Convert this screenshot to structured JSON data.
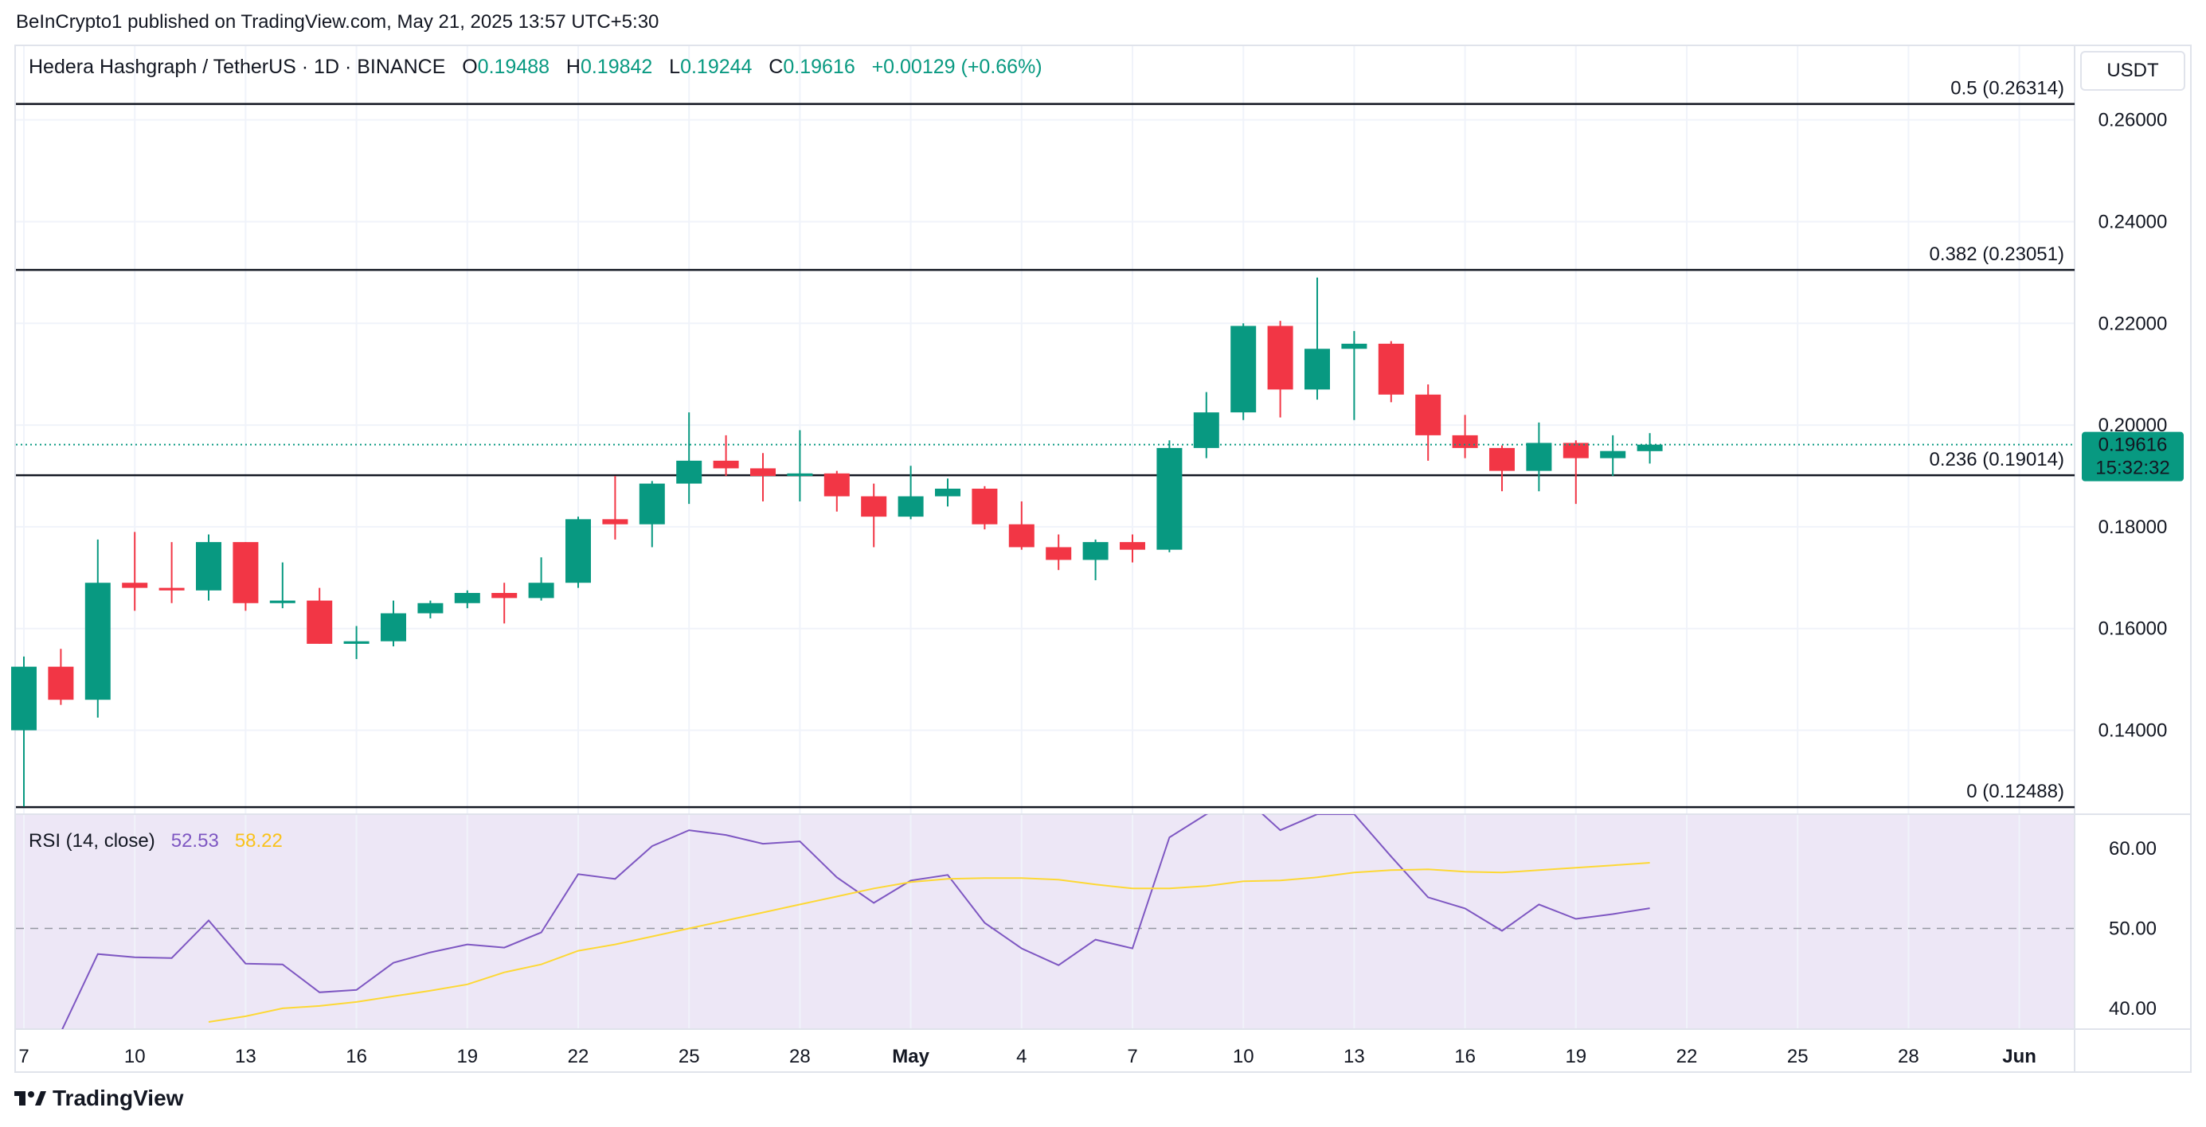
{
  "publisher": "BeInCrypto1 published on TradingView.com, May 21, 2025 13:57 UTC+5:30",
  "brand": "TradingView",
  "legend": {
    "symbol": "Hedera Hashgraph / TetherUS · 1D · BINANCE",
    "o_label": "O",
    "o": "0.19488",
    "h_label": "H",
    "h": "0.19842",
    "l_label": "L",
    "l": "0.19244",
    "c_label": "C",
    "c": "0.19616",
    "change": "+0.00129 (+0.66%)"
  },
  "currency": "USDT",
  "price_badge": {
    "price": "0.19616",
    "countdown": "15:32:32",
    "color": "#089981"
  },
  "rsi_legend": {
    "label": "RSI (14, close)",
    "rsi": "52.53",
    "ma": "58.22"
  },
  "colors": {
    "up": "#089981",
    "down": "#f23645",
    "rsi": "#7e57c2",
    "rsi_ma": "#fdd835",
    "rsi_band": "#ede7f6"
  },
  "chart_data": [
    {
      "type": "candlestick",
      "title": "Hedera Hashgraph / TetherUS · 1D · BINANCE",
      "ylim": [
        0.1235,
        0.2745
      ],
      "y_ticks": [
        "0.26000",
        "0.24000",
        "0.22000",
        "0.20000",
        "0.18000",
        "0.16000",
        "0.14000"
      ],
      "x_tick_labels": [
        "7",
        "10",
        "13",
        "16",
        "19",
        "22",
        "25",
        "28",
        "May",
        "4",
        "7",
        "10",
        "13",
        "16",
        "19",
        "22",
        "25",
        "28",
        "Jun"
      ],
      "fib_levels": [
        {
          "label": "0.5 (0.26314)",
          "value": 0.26314
        },
        {
          "label": "0.382 (0.23051)",
          "value": 0.23051
        },
        {
          "label": "0.236 (0.19014)",
          "value": 0.19014
        },
        {
          "label": "0 (0.12488)",
          "value": 0.12488
        }
      ],
      "last_price": 0.19616,
      "candles": [
        {
          "date": "2025-04-07",
          "o": 0.14,
          "h": 0.1545,
          "l": 0.125,
          "c": 0.1525
        },
        {
          "date": "2025-04-08",
          "o": 0.1525,
          "h": 0.156,
          "l": 0.145,
          "c": 0.146
        },
        {
          "date": "2025-04-09",
          "o": 0.146,
          "h": 0.1775,
          "l": 0.1425,
          "c": 0.169
        },
        {
          "date": "2025-04-10",
          "o": 0.169,
          "h": 0.179,
          "l": 0.1635,
          "c": 0.168
        },
        {
          "date": "2025-04-11",
          "o": 0.168,
          "h": 0.177,
          "l": 0.165,
          "c": 0.1675
        },
        {
          "date": "2025-04-12",
          "o": 0.1675,
          "h": 0.1785,
          "l": 0.1655,
          "c": 0.177
        },
        {
          "date": "2025-04-13",
          "o": 0.177,
          "h": 0.177,
          "l": 0.1635,
          "c": 0.165
        },
        {
          "date": "2025-04-14",
          "o": 0.165,
          "h": 0.173,
          "l": 0.164,
          "c": 0.1655
        },
        {
          "date": "2025-04-15",
          "o": 0.1655,
          "h": 0.168,
          "l": 0.157,
          "c": 0.157
        },
        {
          "date": "2025-04-16",
          "o": 0.157,
          "h": 0.1605,
          "l": 0.154,
          "c": 0.1575
        },
        {
          "date": "2025-04-17",
          "o": 0.1575,
          "h": 0.1655,
          "l": 0.1565,
          "c": 0.163
        },
        {
          "date": "2025-04-18",
          "o": 0.163,
          "h": 0.1655,
          "l": 0.162,
          "c": 0.165
        },
        {
          "date": "2025-04-19",
          "o": 0.165,
          "h": 0.1675,
          "l": 0.164,
          "c": 0.167
        },
        {
          "date": "2025-04-20",
          "o": 0.167,
          "h": 0.169,
          "l": 0.161,
          "c": 0.166
        },
        {
          "date": "2025-04-21",
          "o": 0.166,
          "h": 0.174,
          "l": 0.1655,
          "c": 0.169
        },
        {
          "date": "2025-04-22",
          "o": 0.169,
          "h": 0.182,
          "l": 0.168,
          "c": 0.1815
        },
        {
          "date": "2025-04-23",
          "o": 0.1815,
          "h": 0.19,
          "l": 0.1775,
          "c": 0.1805
        },
        {
          "date": "2025-04-24",
          "o": 0.1805,
          "h": 0.189,
          "l": 0.176,
          "c": 0.1885
        },
        {
          "date": "2025-04-25",
          "o": 0.1885,
          "h": 0.2025,
          "l": 0.1845,
          "c": 0.193
        },
        {
          "date": "2025-04-26",
          "o": 0.193,
          "h": 0.198,
          "l": 0.19,
          "c": 0.1915
        },
        {
          "date": "2025-04-27",
          "o": 0.1915,
          "h": 0.1945,
          "l": 0.185,
          "c": 0.19
        },
        {
          "date": "2025-04-28",
          "o": 0.19,
          "h": 0.199,
          "l": 0.185,
          "c": 0.1905
        },
        {
          "date": "2025-04-29",
          "o": 0.1905,
          "h": 0.191,
          "l": 0.183,
          "c": 0.186
        },
        {
          "date": "2025-04-30",
          "o": 0.186,
          "h": 0.1885,
          "l": 0.176,
          "c": 0.182
        },
        {
          "date": "2025-05-01",
          "o": 0.182,
          "h": 0.192,
          "l": 0.1815,
          "c": 0.186
        },
        {
          "date": "2025-05-02",
          "o": 0.186,
          "h": 0.1895,
          "l": 0.184,
          "c": 0.1875
        },
        {
          "date": "2025-05-03",
          "o": 0.1875,
          "h": 0.188,
          "l": 0.1795,
          "c": 0.1805
        },
        {
          "date": "2025-05-04",
          "o": 0.1805,
          "h": 0.185,
          "l": 0.1755,
          "c": 0.176
        },
        {
          "date": "2025-05-05",
          "o": 0.176,
          "h": 0.1785,
          "l": 0.1715,
          "c": 0.1735
        },
        {
          "date": "2025-05-06",
          "o": 0.1735,
          "h": 0.1775,
          "l": 0.1695,
          "c": 0.177
        },
        {
          "date": "2025-05-07",
          "o": 0.177,
          "h": 0.1785,
          "l": 0.173,
          "c": 0.1755
        },
        {
          "date": "2025-05-08",
          "o": 0.1755,
          "h": 0.197,
          "l": 0.175,
          "c": 0.1955
        },
        {
          "date": "2025-05-09",
          "o": 0.1955,
          "h": 0.2065,
          "l": 0.1935,
          "c": 0.2025
        },
        {
          "date": "2025-05-10",
          "o": 0.2025,
          "h": 0.22,
          "l": 0.201,
          "c": 0.2195
        },
        {
          "date": "2025-05-11",
          "o": 0.2195,
          "h": 0.2205,
          "l": 0.2015,
          "c": 0.207
        },
        {
          "date": "2025-05-12",
          "o": 0.207,
          "h": 0.229,
          "l": 0.205,
          "c": 0.215
        },
        {
          "date": "2025-05-13",
          "o": 0.215,
          "h": 0.2185,
          "l": 0.201,
          "c": 0.216
        },
        {
          "date": "2025-05-14",
          "o": 0.216,
          "h": 0.2165,
          "l": 0.2045,
          "c": 0.206
        },
        {
          "date": "2025-05-15",
          "o": 0.206,
          "h": 0.208,
          "l": 0.193,
          "c": 0.198
        },
        {
          "date": "2025-05-16",
          "o": 0.198,
          "h": 0.202,
          "l": 0.1935,
          "c": 0.1955
        },
        {
          "date": "2025-05-17",
          "o": 0.1955,
          "h": 0.196,
          "l": 0.187,
          "c": 0.191
        },
        {
          "date": "2025-05-18",
          "o": 0.191,
          "h": 0.2005,
          "l": 0.187,
          "c": 0.1965
        },
        {
          "date": "2025-05-19",
          "o": 0.1965,
          "h": 0.197,
          "l": 0.1845,
          "c": 0.1935
        },
        {
          "date": "2025-05-20",
          "o": 0.1935,
          "h": 0.198,
          "l": 0.19,
          "c": 0.1949
        },
        {
          "date": "2025-05-21",
          "o": 0.19488,
          "h": 0.19842,
          "l": 0.19244,
          "c": 0.19616
        }
      ]
    },
    {
      "type": "line",
      "title": "RSI (14, close)",
      "ylim": [
        37.4,
        64.3
      ],
      "y_ticks": [
        "60.00",
        "50.00",
        "40.00"
      ],
      "midline": 50,
      "series": [
        {
          "name": "RSI",
          "points": [
            [
              "2025-04-08",
              37.0
            ],
            [
              "2025-04-09",
              46.8
            ],
            [
              "2025-04-10",
              46.4
            ],
            [
              "2025-04-11",
              46.3
            ],
            [
              "2025-04-12",
              51.0
            ],
            [
              "2025-04-13",
              45.6
            ],
            [
              "2025-04-14",
              45.5
            ],
            [
              "2025-04-15",
              42.0
            ],
            [
              "2025-04-16",
              42.3
            ],
            [
              "2025-04-17",
              45.7
            ],
            [
              "2025-04-18",
              47.0
            ],
            [
              "2025-04-19",
              48.0
            ],
            [
              "2025-04-20",
              47.6
            ],
            [
              "2025-04-21",
              49.5
            ],
            [
              "2025-04-22",
              56.8
            ],
            [
              "2025-04-23",
              56.2
            ],
            [
              "2025-04-24",
              60.3
            ],
            [
              "2025-04-25",
              62.3
            ],
            [
              "2025-04-26",
              61.7
            ],
            [
              "2025-04-27",
              60.6
            ],
            [
              "2025-04-28",
              60.9
            ],
            [
              "2025-04-29",
              56.4
            ],
            [
              "2025-04-30",
              53.2
            ],
            [
              "2025-05-01",
              56.0
            ],
            [
              "2025-05-02",
              56.7
            ],
            [
              "2025-05-03",
              50.7
            ],
            [
              "2025-05-04",
              47.5
            ],
            [
              "2025-05-05",
              45.4
            ],
            [
              "2025-05-06",
              48.6
            ],
            [
              "2025-05-07",
              47.5
            ],
            [
              "2025-05-08",
              61.4
            ],
            [
              "2025-05-09",
              64.3
            ],
            [
              "2025-05-10",
              66.5
            ],
            [
              "2025-05-11",
              62.3
            ],
            [
              "2025-05-12",
              64.3
            ],
            [
              "2025-05-13",
              64.3
            ],
            [
              "2025-05-14",
              59.0
            ],
            [
              "2025-05-15",
              53.9
            ],
            [
              "2025-05-16",
              52.5
            ],
            [
              "2025-05-17",
              49.7
            ],
            [
              "2025-05-18",
              53.0
            ],
            [
              "2025-05-19",
              51.2
            ],
            [
              "2025-05-20",
              51.8
            ],
            [
              "2025-05-21",
              52.53
            ]
          ]
        },
        {
          "name": "RSI-based MA",
          "points": [
            [
              "2025-04-12",
              38.3
            ],
            [
              "2025-04-13",
              39.0
            ],
            [
              "2025-04-14",
              40.0
            ],
            [
              "2025-04-15",
              40.3
            ],
            [
              "2025-04-16",
              40.8
            ],
            [
              "2025-04-17",
              41.5
            ],
            [
              "2025-04-18",
              42.2
            ],
            [
              "2025-04-19",
              43.0
            ],
            [
              "2025-04-20",
              44.5
            ],
            [
              "2025-04-21",
              45.5
            ],
            [
              "2025-04-22",
              47.2
            ],
            [
              "2025-04-23",
              48.0
            ],
            [
              "2025-04-24",
              49.0
            ],
            [
              "2025-04-25",
              50.0
            ],
            [
              "2025-04-26",
              51.0
            ],
            [
              "2025-04-27",
              52.0
            ],
            [
              "2025-04-28",
              53.0
            ],
            [
              "2025-04-29",
              54.0
            ],
            [
              "2025-04-30",
              55.0
            ],
            [
              "2025-05-01",
              55.8
            ],
            [
              "2025-05-02",
              56.2
            ],
            [
              "2025-05-03",
              56.3
            ],
            [
              "2025-05-04",
              56.3
            ],
            [
              "2025-05-05",
              56.1
            ],
            [
              "2025-05-06",
              55.5
            ],
            [
              "2025-05-07",
              55.0
            ],
            [
              "2025-05-08",
              55.0
            ],
            [
              "2025-05-09",
              55.3
            ],
            [
              "2025-05-10",
              55.9
            ],
            [
              "2025-05-11",
              56.0
            ],
            [
              "2025-05-12",
              56.4
            ],
            [
              "2025-05-13",
              57.0
            ],
            [
              "2025-05-14",
              57.3
            ],
            [
              "2025-05-15",
              57.4
            ],
            [
              "2025-05-16",
              57.1
            ],
            [
              "2025-05-17",
              57.0
            ],
            [
              "2025-05-18",
              57.3
            ],
            [
              "2025-05-19",
              57.6
            ],
            [
              "2025-05-20",
              57.9
            ],
            [
              "2025-05-21",
              58.22
            ]
          ]
        }
      ]
    }
  ]
}
